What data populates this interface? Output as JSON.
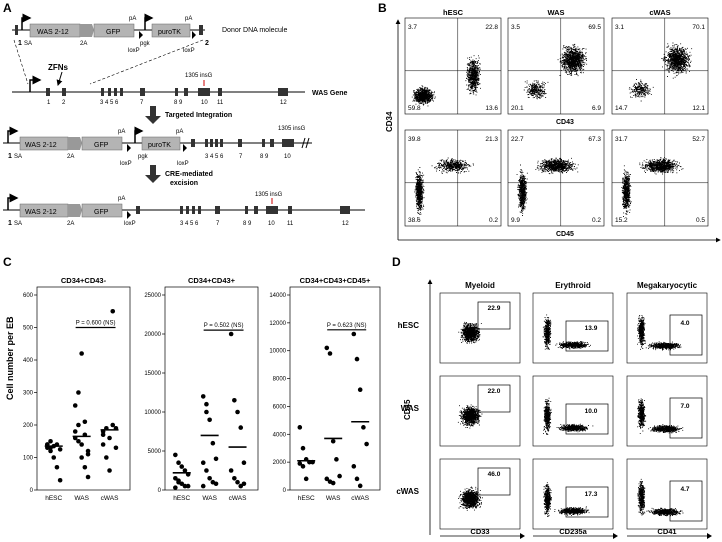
{
  "panels": {
    "A": {
      "letter": "A",
      "donor_label": "Donor DNA molecule",
      "donor_box_label": "WAS 2-12",
      "gfp": "GFP",
      "puro": "puroTK",
      "pa": "pA",
      "sa": "SA",
      "twoA": "2A",
      "pgk": "pgk",
      "loxp": "loxP",
      "zfns": "ZFNs",
      "gene_label": "WAS Gene",
      "insg": "1305 insG",
      "step1": "Targeted Integration",
      "step2a": "CRE-mediated",
      "step2b": "excision",
      "n1": "1",
      "n2": "2",
      "n12": "12"
    },
    "B": {
      "letter": "B",
      "cols": [
        "hESC",
        "WAS",
        "cWAS"
      ],
      "top_vals": [
        [
          "3.7",
          "22.8",
          "59.8",
          "13.6"
        ],
        [
          "3.5",
          "69.5",
          "20.1",
          "6.9"
        ],
        [
          "3.1",
          "70.1",
          "14.7",
          "12.1"
        ]
      ],
      "bot_vals": [
        [
          "39.8",
          "21.3",
          "38.6",
          "0.2"
        ],
        [
          "22.7",
          "67.3",
          "9.9",
          "0.2"
        ],
        [
          "31.7",
          "52.7",
          "15.2",
          "0.5"
        ]
      ],
      "ylabel": "CD34",
      "xlabel_top": "CD43",
      "xlabel_bot": "CD45"
    },
    "C": {
      "letter": "C",
      "ylabel": "Cell number per EB",
      "charts": [
        {
          "title": "CD34+CD43-",
          "p": "P = 0.600 (NS)"
        },
        {
          "title": "CD34+CD43+",
          "p": "P = 0.502 (NS)"
        },
        {
          "title": "CD34+CD43+CD45+",
          "p": "P = 0.623 (NS)"
        }
      ]
    },
    "D": {
      "letter": "D",
      "cols": [
        "Myeloid",
        "Erythroid",
        "Megakaryocytic"
      ],
      "rows": [
        "hESC",
        "WAS",
        "cWAS"
      ],
      "vals": [
        [
          "22.9",
          "13.9",
          "4.0"
        ],
        [
          "22.0",
          "10.0",
          "7.0"
        ],
        [
          "46.0",
          "17.3",
          "4.7"
        ]
      ],
      "ylabel": "CD45",
      "xlabels": [
        "CD33",
        "CD235a",
        "CD41"
      ]
    }
  },
  "chart_data": [
    {
      "type": "scatter",
      "title": "CD34+CD43-",
      "categories": [
        "hESC",
        "WAS",
        "cWAS"
      ],
      "ylim": [
        0,
        600
      ],
      "yticks": [
        0,
        100,
        200,
        300,
        400,
        500,
        600
      ],
      "points": [
        [
          130,
          130,
          135,
          140,
          125,
          140,
          150,
          100,
          70,
          30,
          140,
          120
        ],
        [
          180,
          150,
          140,
          170,
          120,
          160,
          200,
          100,
          70,
          40,
          260,
          300,
          420,
          210,
          110
        ],
        [
          180,
          190,
          160,
          200,
          130,
          140,
          100,
          60,
          550,
          190,
          170
        ]
      ],
      "means": [
        135,
        165,
        185
      ]
    },
    {
      "type": "scatter",
      "title": "CD34+CD43+",
      "categories": [
        "hESC",
        "WAS",
        "cWAS"
      ],
      "ylim": [
        0,
        25000
      ],
      "yticks": [
        0,
        5000,
        10000,
        15000,
        20000,
        25000
      ],
      "points": [
        [
          4500,
          3500,
          3000,
          2500,
          2000,
          1500,
          1000,
          800,
          500,
          500,
          300,
          1200
        ],
        [
          12000,
          10000,
          9000,
          6000,
          4000,
          3500,
          2500,
          1500,
          1000,
          800,
          500,
          11000
        ],
        [
          20000,
          11500,
          10000,
          8000,
          3500,
          2500,
          1500,
          1000,
          500,
          800
        ]
      ],
      "means": [
        2200,
        7000,
        5500
      ]
    },
    {
      "type": "scatter",
      "title": "CD34+CD43+CD45+",
      "categories": [
        "hESC",
        "WAS",
        "cWAS"
      ],
      "ylim": [
        0,
        14000
      ],
      "yticks": [
        0,
        2000,
        4000,
        6000,
        8000,
        10000,
        12000,
        14000
      ],
      "points": [
        [
          4500,
          3000,
          2200,
          2000,
          2000,
          1900,
          1700,
          800
        ],
        [
          10200,
          9800,
          3500,
          2200,
          1000,
          800,
          600,
          500
        ],
        [
          11200,
          9400,
          7200,
          4500,
          3300,
          1700,
          800,
          300
        ]
      ],
      "means": [
        2100,
        3700,
        4900
      ]
    }
  ]
}
